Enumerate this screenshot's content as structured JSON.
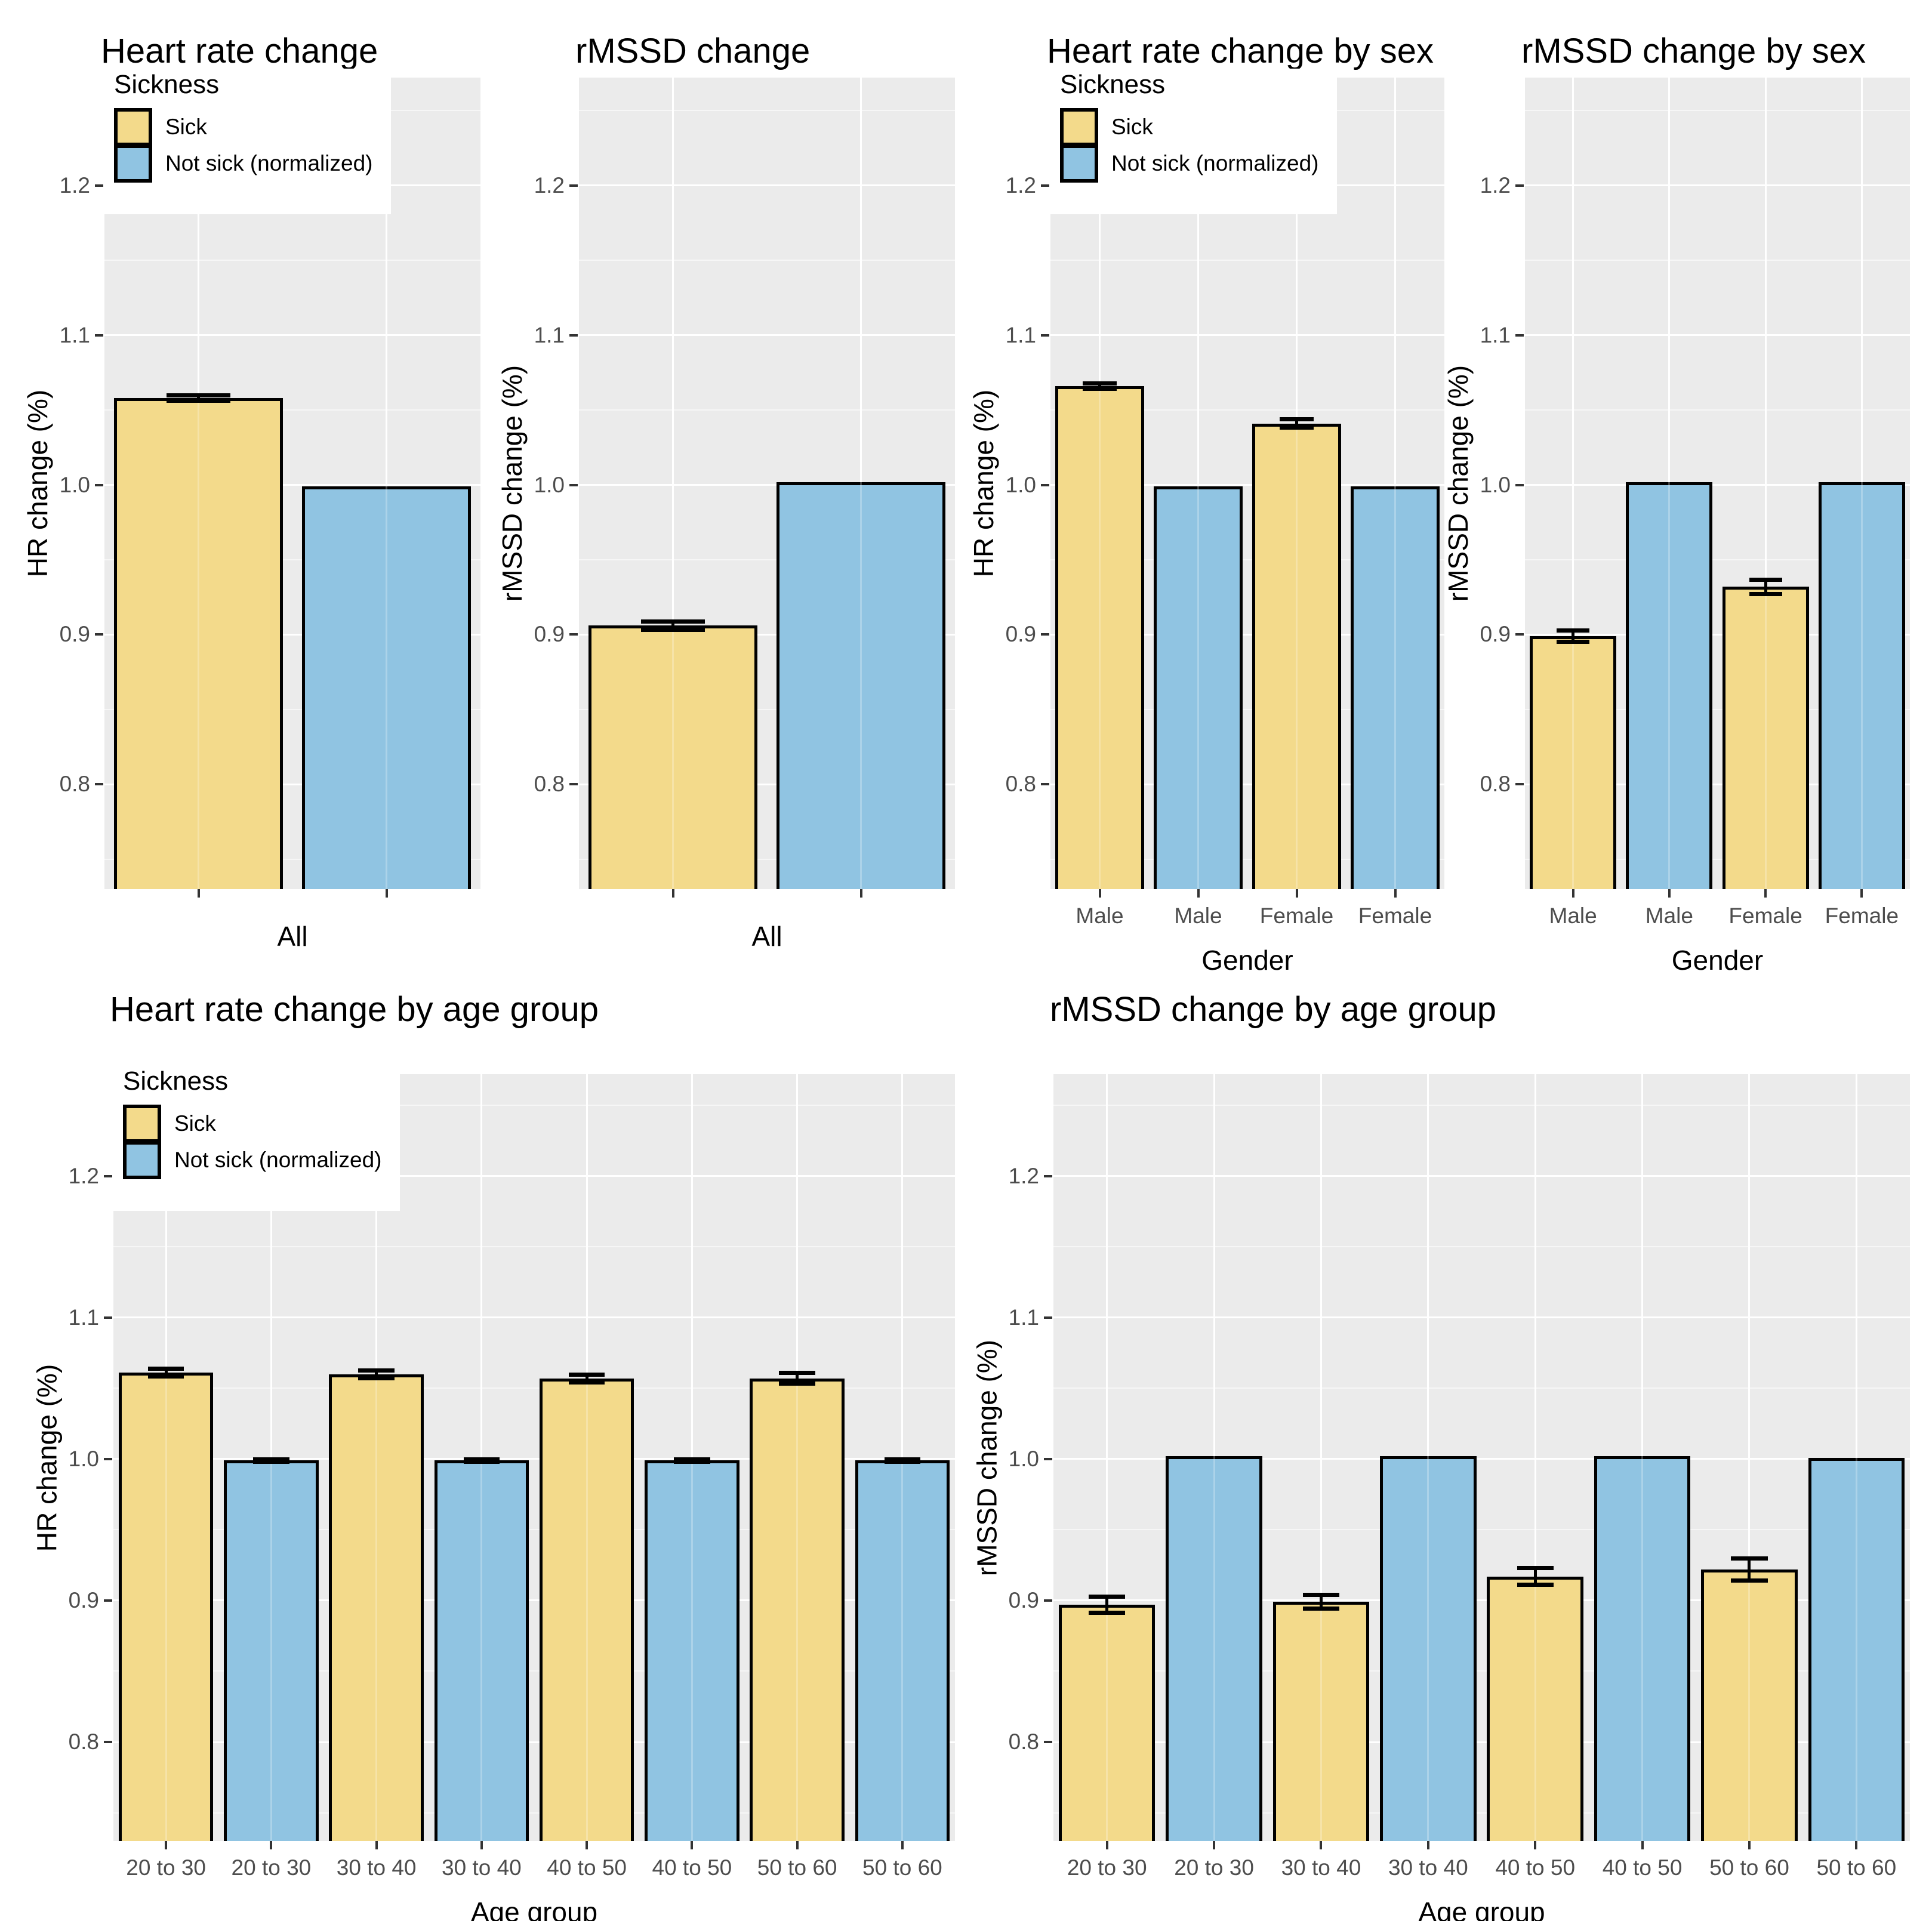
{
  "figure_title": "",
  "colors": {
    "sick": "#F3DA8B",
    "not_sick": "#90C4E2",
    "panel_background": "#EBEBEB",
    "grid_major": "#FFFFFF",
    "bar_outline": "#000000",
    "axis_text": "#4D4D4D",
    "tick_mark": "#333333",
    "title_text": "#000000"
  },
  "legend": {
    "title": "Sickness",
    "items": [
      {
        "label": "Sick",
        "color_key": "sick"
      },
      {
        "label": "Not sick (normalized)",
        "color_key": "not_sick"
      }
    ]
  },
  "axes": {
    "ylim": [
      0.73,
      1.272
    ],
    "y_tick_labels": [
      "0.8",
      "0.9",
      "1.0",
      "1.1",
      "1.2"
    ],
    "grid": "on",
    "legend_position": "top-left-overlay"
  },
  "chart_data": [
    {
      "id": "hr-change-all",
      "type": "bar",
      "title": "Heart rate change",
      "ylabel": "HR change (%)",
      "xlabel": "All",
      "show_legend": true,
      "bars": [
        {
          "label": "",
          "group": "Sick",
          "value": 1.058,
          "error": 0.002
        },
        {
          "label": "",
          "group": "Not sick (normalized)",
          "value": 0.999,
          "error": 0
        }
      ]
    },
    {
      "id": "rmssd-change-all",
      "type": "bar",
      "title": "rMSSD change",
      "ylabel": "rMSSD change (%)",
      "xlabel": "All",
      "show_legend": false,
      "bars": [
        {
          "label": "",
          "group": "Sick",
          "value": 0.906,
          "error": 0.003
        },
        {
          "label": "",
          "group": "Not sick (normalized)",
          "value": 1.002,
          "error": 0
        }
      ]
    },
    {
      "id": "hr-change-by-sex",
      "type": "bar",
      "title": "Heart rate change by sex",
      "ylabel": "HR change (%)",
      "xlabel": "Gender",
      "show_legend": true,
      "bars": [
        {
          "label": "Male",
          "group": "Sick",
          "value": 1.066,
          "error": 0.002
        },
        {
          "label": "Male",
          "group": "Not sick (normalized)",
          "value": 0.999,
          "error": 0
        },
        {
          "label": "Female",
          "group": "Sick",
          "value": 1.041,
          "error": 0.003
        },
        {
          "label": "Female",
          "group": "Not sick (normalized)",
          "value": 0.999,
          "error": 0
        }
      ]
    },
    {
      "id": "rmssd-change-by-sex",
      "type": "bar",
      "title": "rMSSD change by sex",
      "ylabel": "rMSSD change (%)",
      "xlabel": "Gender",
      "show_legend": false,
      "bars": [
        {
          "label": "Male",
          "group": "Sick",
          "value": 0.899,
          "error": 0.004
        },
        {
          "label": "Male",
          "group": "Not sick (normalized)",
          "value": 1.002,
          "error": 0
        },
        {
          "label": "Female",
          "group": "Sick",
          "value": 0.932,
          "error": 0.005
        },
        {
          "label": "Female",
          "group": "Not sick (normalized)",
          "value": 1.002,
          "error": 0
        }
      ]
    },
    {
      "id": "hr-change-by-age-group",
      "type": "bar",
      "title": "Heart rate change by age group",
      "ylabel": "HR change (%)",
      "xlabel": "Age group",
      "show_legend": true,
      "bars": [
        {
          "label": "20 to 30",
          "group": "Sick",
          "value": 1.061,
          "error": 0.003
        },
        {
          "label": "20 to 30",
          "group": "Not sick (normalized)",
          "value": 0.999,
          "error": 0.001
        },
        {
          "label": "30 to 40",
          "group": "Sick",
          "value": 1.06,
          "error": 0.003
        },
        {
          "label": "30 to 40",
          "group": "Not sick (normalized)",
          "value": 0.999,
          "error": 0.001
        },
        {
          "label": "40 to 50",
          "group": "Sick",
          "value": 1.057,
          "error": 0.003
        },
        {
          "label": "40 to 50",
          "group": "Not sick (normalized)",
          "value": 0.999,
          "error": 0.001
        },
        {
          "label": "50 to 60",
          "group": "Sick",
          "value": 1.057,
          "error": 0.004
        },
        {
          "label": "50 to 60",
          "group": "Not sick (normalized)",
          "value": 0.999,
          "error": 0.001
        }
      ]
    },
    {
      "id": "rmssd-change-by-age-group",
      "type": "bar",
      "title": "rMSSD change by age group",
      "ylabel": "rMSSD change (%)",
      "xlabel": "Age group",
      "show_legend": false,
      "bars": [
        {
          "label": "20 to 30",
          "group": "Sick",
          "value": 0.897,
          "error": 0.006
        },
        {
          "label": "20 to 30",
          "group": "Not sick (normalized)",
          "value": 1.002,
          "error": 0
        },
        {
          "label": "30 to 40",
          "group": "Sick",
          "value": 0.899,
          "error": 0.005
        },
        {
          "label": "30 to 40",
          "group": "Not sick (normalized)",
          "value": 1.002,
          "error": 0
        },
        {
          "label": "40 to 50",
          "group": "Sick",
          "value": 0.917,
          "error": 0.006
        },
        {
          "label": "40 to 50",
          "group": "Not sick (normalized)",
          "value": 1.002,
          "error": 0
        },
        {
          "label": "50 to 60",
          "group": "Sick",
          "value": 0.922,
          "error": 0.008
        },
        {
          "label": "50 to 60",
          "group": "Not sick (normalized)",
          "value": 1.001,
          "error": 0
        }
      ]
    }
  ]
}
